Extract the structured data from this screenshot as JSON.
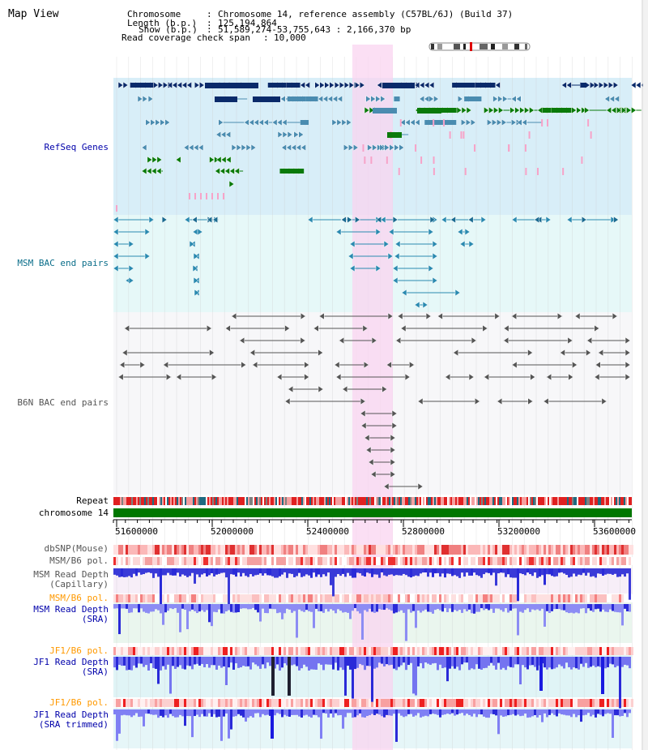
{
  "title": "Map View",
  "info": {
    "chromosome_key": "Chromosome",
    "chromosome_value": "Chromosome 14, reference assembly (C57BL/6J) (Build 37)",
    "length_key": "Length (b.p.)",
    "length_value": "125,194,864",
    "show_key": "Show (b.p.)",
    "show_value": "51,589,274-53,755,643 : 2,166,370 bp",
    "span_key": "Read coverage check span",
    "span_value": "10,000"
  },
  "tracks": {
    "refseq": "RefSeq Genes",
    "msm_bac": "MSM BAC end pairs",
    "b6n_bac": "B6N BAC end pairs",
    "repeat": "Repeat",
    "chromosome": "chromosome 14",
    "dbsnp": "dbSNP(Mouse)",
    "msm_pol_1": "MSM/B6 pol.",
    "msm_depth_cap_1": "MSM Read Depth",
    "msm_depth_cap_2": "(Capillary)",
    "msm_pol_2": "MSM/B6 pol.",
    "msm_depth_sra_1": "MSM Read Depth",
    "msm_depth_sra_2": "(SRA)",
    "jf1_pol_1": "JF1/B6 pol.",
    "jf1_depth_sra_1": "JF1 Read Depth",
    "jf1_depth_sra_2": "(SRA)",
    "jf1_pol_2": "JF1/B6 pol.",
    "jf1_depth_trim_1": "JF1 Read Depth",
    "jf1_depth_trim_2": "(SRA trimmed)"
  },
  "axis": {
    "ticks": [
      "51600000",
      "52000000",
      "52400000",
      "52800000",
      "53200000",
      "53600000"
    ]
  },
  "colors": {
    "refseq_label": "#0000aa",
    "msm_label": "#0b6e8a",
    "b6n_label": "#555555",
    "pol_label": "#ff9900",
    "navy_gene": "#0a2a6a",
    "teal_gene": "#4a8cb0",
    "green_gene": "#0a7a0a",
    "highlight": "#f9d4f0",
    "chromosome_bar": "#007700"
  }
}
